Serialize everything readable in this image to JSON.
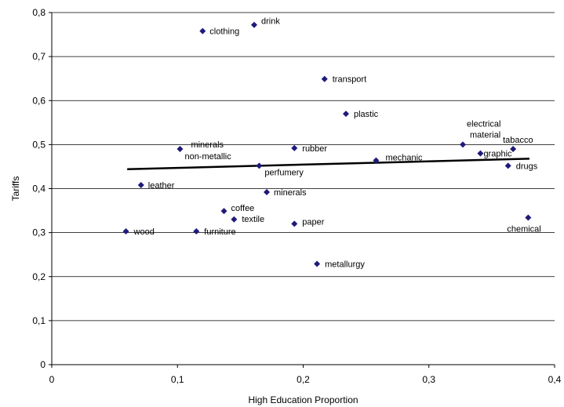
{
  "chart_data": {
    "type": "scatter",
    "title": "",
    "xlabel": "High Education Proportion",
    "ylabel": "Tariffs",
    "xlim": [
      0,
      0.4
    ],
    "ylim": [
      0,
      0.8
    ],
    "x_ticks": [
      "0",
      "0,1",
      "0,2",
      "0,3",
      "0,4"
    ],
    "y_ticks": [
      "0",
      "0,1",
      "0,2",
      "0,3",
      "0,4",
      "0,5",
      "0,6",
      "0,7",
      "0,8"
    ],
    "grid": "horizontal",
    "marker_color": "#1f1a7a",
    "trendline": {
      "x": [
        0.06,
        0.38
      ],
      "y": [
        0.444,
        0.468
      ]
    },
    "points": [
      {
        "label": "clothing",
        "x": 0.12,
        "y": 0.758
      },
      {
        "label": "drink",
        "x": 0.161,
        "y": 0.772
      },
      {
        "label": "transport",
        "x": 0.217,
        "y": 0.649
      },
      {
        "label": "plastic",
        "x": 0.234,
        "y": 0.57
      },
      {
        "label": "electrical material",
        "x": 0.327,
        "y": 0.5
      },
      {
        "label": "tabacco",
        "x": 0.367,
        "y": 0.49
      },
      {
        "label": "graphic",
        "x": 0.341,
        "y": 0.48
      },
      {
        "label": "drugs",
        "x": 0.363,
        "y": 0.452
      },
      {
        "label": "minerals non-metallic",
        "x": 0.102,
        "y": 0.49
      },
      {
        "label": "rubber",
        "x": 0.193,
        "y": 0.492
      },
      {
        "label": "mechanic",
        "x": 0.258,
        "y": 0.464
      },
      {
        "label": "perfumery",
        "x": 0.165,
        "y": 0.452
      },
      {
        "label": "leather",
        "x": 0.071,
        "y": 0.408
      },
      {
        "label": "minerals",
        "x": 0.171,
        "y": 0.392
      },
      {
        "label": "coffee",
        "x": 0.137,
        "y": 0.349
      },
      {
        "label": "textile",
        "x": 0.145,
        "y": 0.33
      },
      {
        "label": "chemical",
        "x": 0.379,
        "y": 0.334
      },
      {
        "label": "wood",
        "x": 0.059,
        "y": 0.303
      },
      {
        "label": "furniture",
        "x": 0.115,
        "y": 0.303
      },
      {
        "label": "paper",
        "x": 0.193,
        "y": 0.32
      },
      {
        "label": "metallurgy",
        "x": 0.211,
        "y": 0.229
      }
    ]
  }
}
